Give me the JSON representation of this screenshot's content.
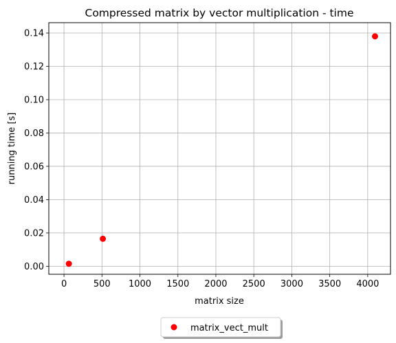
{
  "chart_data": {
    "type": "scatter",
    "title": "Compressed matrix by vector multiplication - time",
    "xlabel": "matrix size",
    "ylabel": "running time [s]",
    "xlim": [
      -200,
      4300
    ],
    "ylim": [
      -0.0048,
      0.1462
    ],
    "x_ticks": [
      0,
      500,
      1000,
      1500,
      2000,
      2500,
      3000,
      3500,
      4000
    ],
    "x_tick_labels": [
      "0",
      "500",
      "1000",
      "1500",
      "2000",
      "2500",
      "3000",
      "3500",
      "4000"
    ],
    "y_ticks": [
      0.0,
      0.02,
      0.04,
      0.06,
      0.08,
      0.1,
      0.12,
      0.14
    ],
    "y_tick_labels": [
      "0.00",
      "0.02",
      "0.04",
      "0.06",
      "0.08",
      "0.10",
      "0.12",
      "0.14"
    ],
    "grid": true,
    "legend_placement": "below the plot, centered",
    "series": [
      {
        "name": "matrix_vect_mult",
        "color": "#ff0000",
        "marker": "circle",
        "x": [
          64,
          512,
          4096
        ],
        "y": [
          0.0015,
          0.0165,
          0.138
        ]
      }
    ]
  }
}
